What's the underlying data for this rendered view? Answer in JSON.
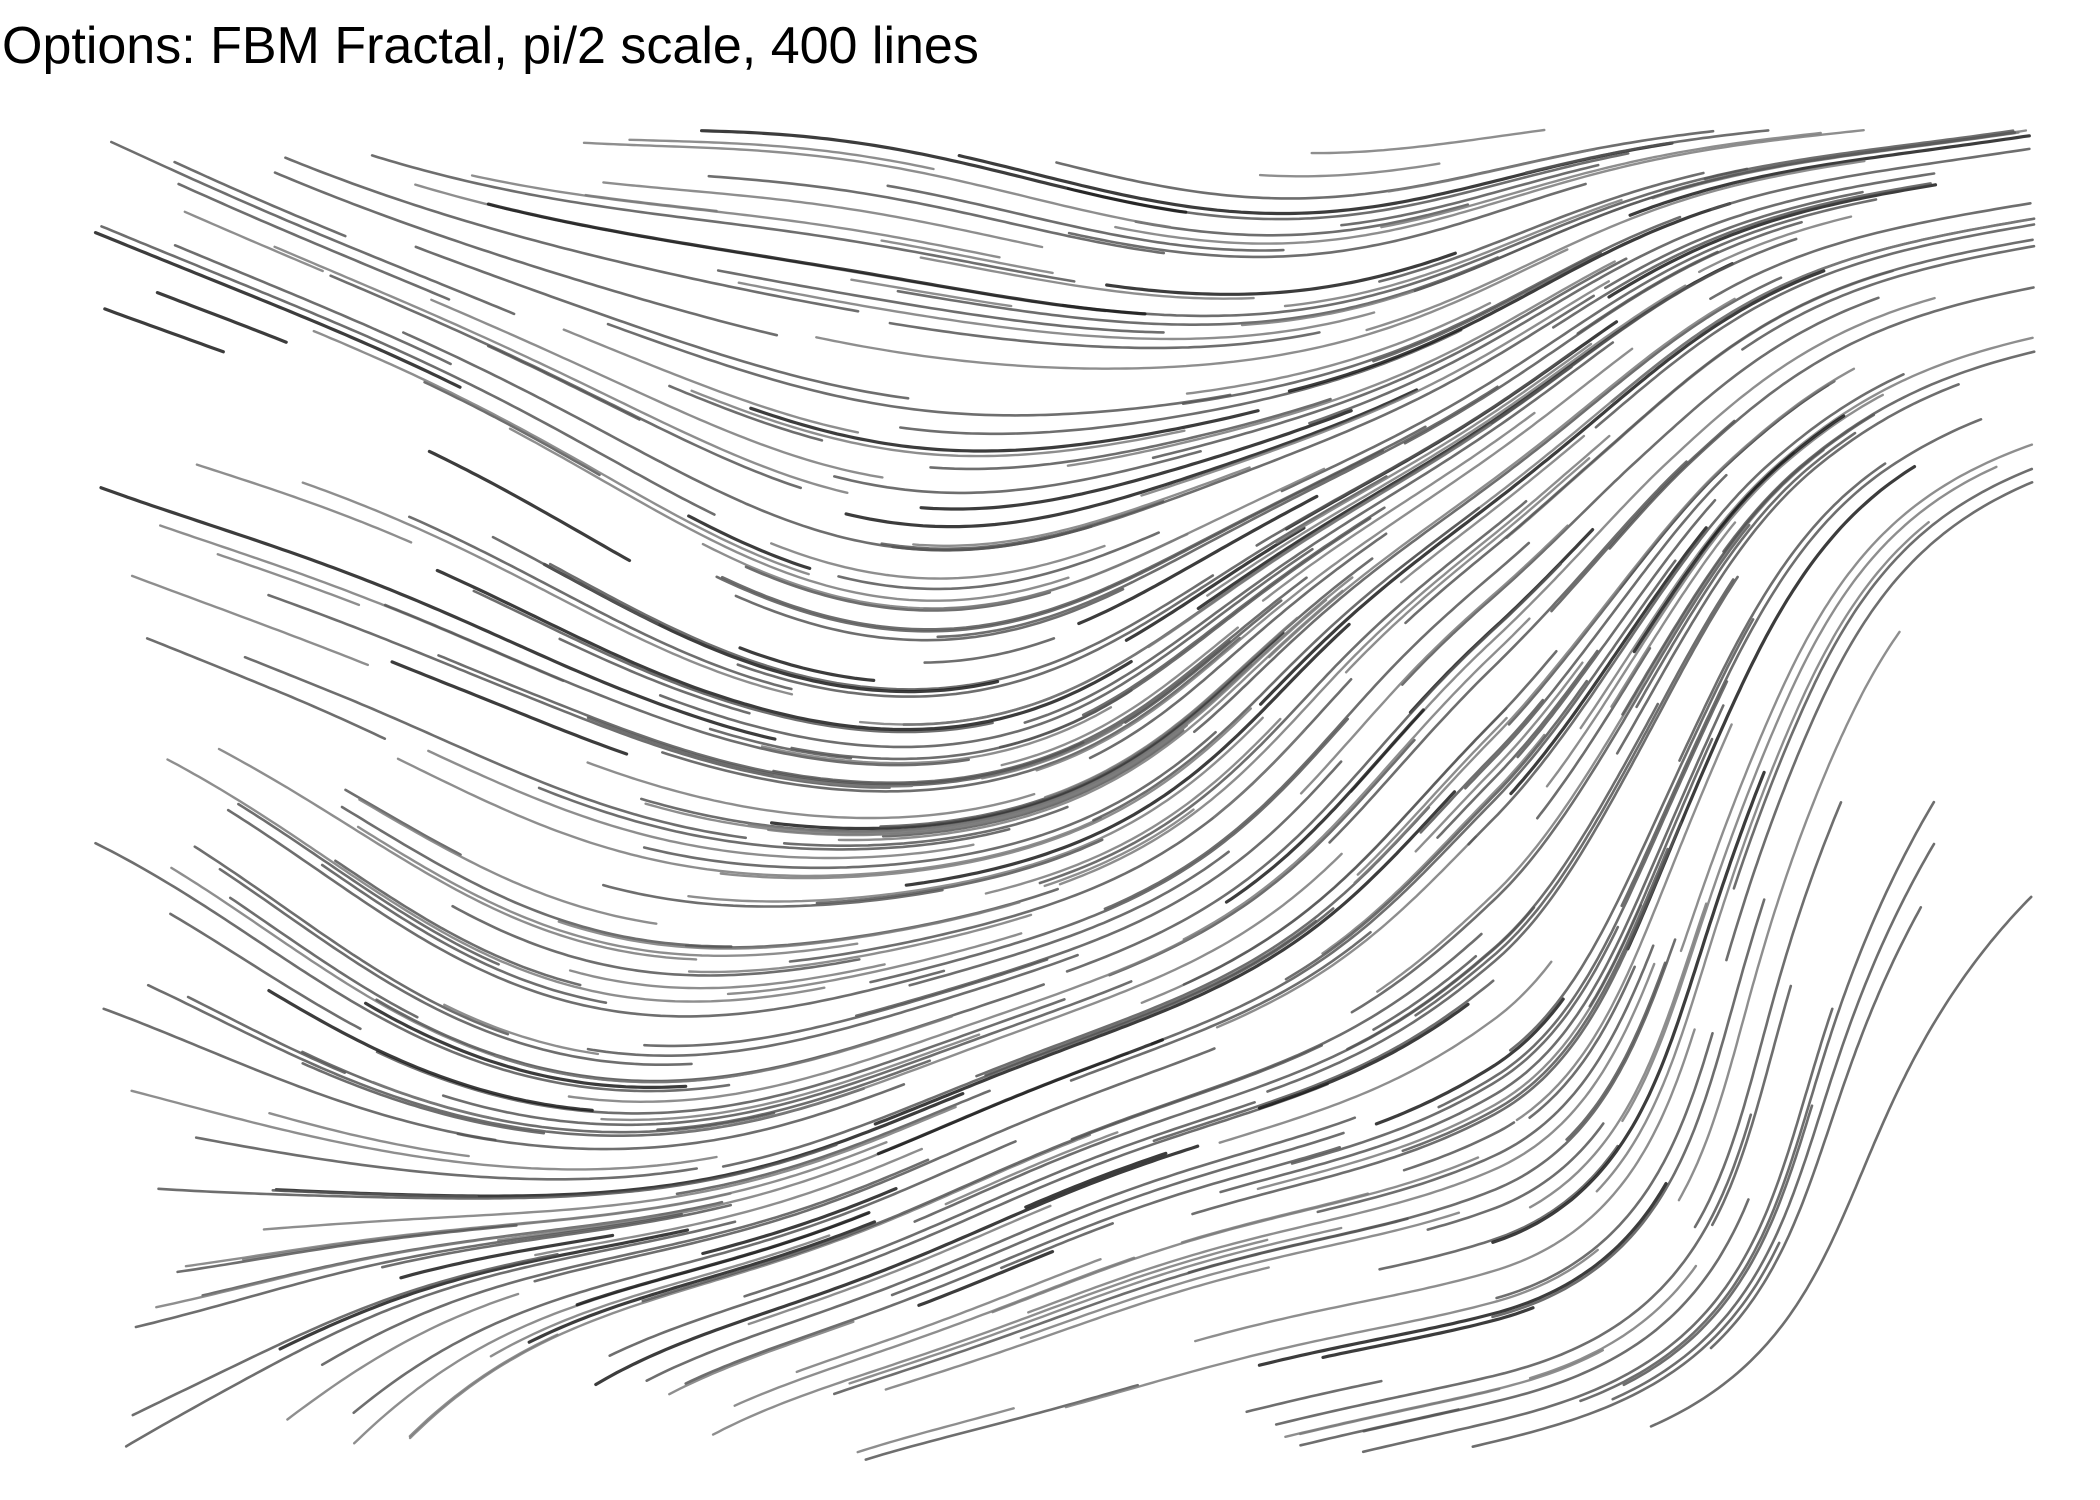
{
  "title": "Options: FBM Fractal, pi/2 scale, 400 lines",
  "colors": {
    "background": "#ffffff",
    "title_text": "#000000",
    "line_primary": "#555555",
    "line_dark": "#1a1a1a",
    "line_light": "#7a7a7a"
  }
}
